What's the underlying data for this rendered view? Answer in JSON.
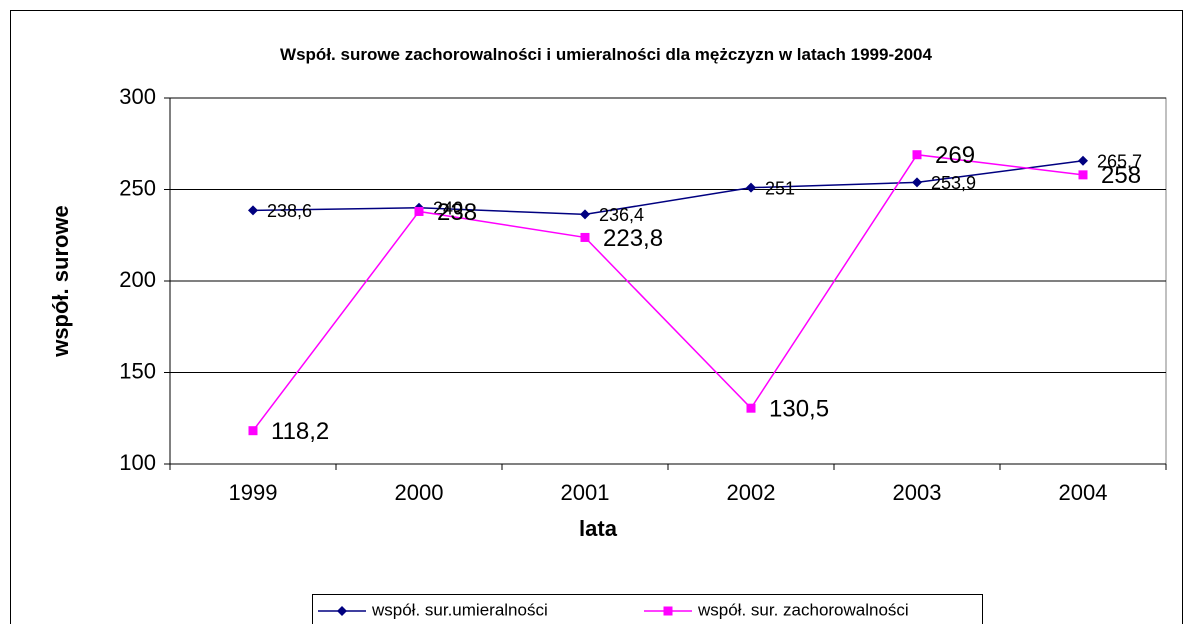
{
  "chart_data": {
    "type": "line",
    "title": "Współ. surowe zachorowalności i umieralności  dla mężczyzn w latach 1999-2004",
    "x_label": "lata",
    "y_label": "współ. surowe",
    "categories": [
      "1999",
      "2000",
      "2001",
      "2002",
      "2003",
      "2004"
    ],
    "series": [
      {
        "name": "współ. sur.umieralności",
        "color": "#000080",
        "marker": "diamond",
        "values": [
          238.6,
          240,
          236.4,
          251,
          253.9,
          265.7
        ],
        "value_labels": [
          "238,6",
          "240",
          "236,4",
          "251",
          "253,9",
          "265,7"
        ]
      },
      {
        "name": "współ. sur. zachorowalności",
        "color": "#ff00ff",
        "marker": "square",
        "values": [
          118.2,
          238,
          223.8,
          130.5,
          269,
          258
        ],
        "value_labels": [
          "118,2",
          "238",
          "223,8",
          "130,5",
          "269",
          "258"
        ]
      }
    ],
    "ylim": [
      100,
      300
    ],
    "yticks": [
      100,
      150,
      200,
      250,
      300
    ],
    "grid": true,
    "legend": "bottom"
  }
}
